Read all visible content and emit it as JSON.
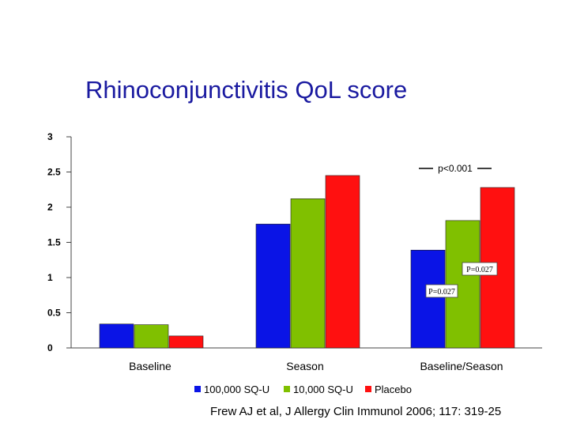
{
  "chart_data": {
    "type": "bar",
    "title": "Rhinoconjunctivitis QoL score",
    "xlabel": "",
    "ylabel": "",
    "ylim": [
      0,
      3
    ],
    "y_ticks": [
      "3",
      "2.5",
      "2",
      "1.5",
      "1",
      "0.5",
      "0"
    ],
    "y_tick_values": [
      3,
      2.5,
      2,
      1.5,
      1,
      0.5,
      0
    ],
    "categories": [
      "Baseline",
      "Season",
      "Baseline/Season"
    ],
    "series": [
      {
        "name": "100,000 SQ-U",
        "values": [
          0.34,
          1.76,
          1.39
        ],
        "color": "#0a14e6"
      },
      {
        "name": "10,000 SQ-U",
        "values": [
          0.33,
          2.12,
          1.81
        ],
        "color": "#80c000"
      },
      {
        "name": "Placebo",
        "values": [
          0.17,
          2.45,
          2.28
        ],
        "color": "#ff1010"
      }
    ],
    "grid": false,
    "legend_position": "bottom",
    "annotations": [
      {
        "text": "p<0.001"
      },
      {
        "text": "P=0.027"
      },
      {
        "text": "P=0.027"
      }
    ]
  },
  "citation": "Frew AJ et al, J Allergy Clin Immunol 2006; 117: 319-25"
}
